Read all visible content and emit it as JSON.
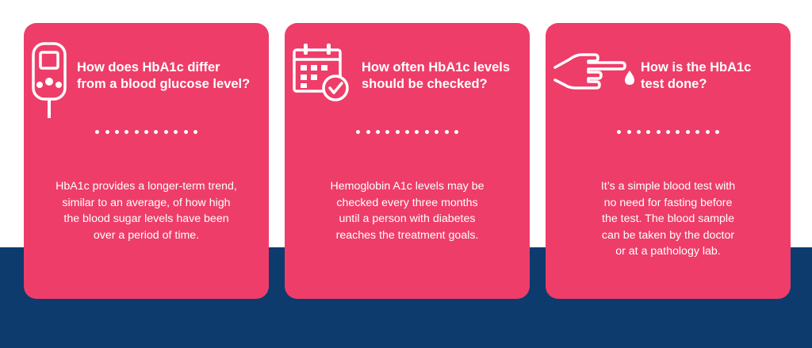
{
  "colors": {
    "card_background": "#ee3d69",
    "bottom_band": "#0d3b6e",
    "top_background": "#ffffff",
    "text": "#ffffff"
  },
  "cards": [
    {
      "icon": "glucose-meter-icon",
      "title_lines": [
        "How does HbA1c differ",
        "from a blood glucose level?"
      ],
      "body_lines": [
        "HbA1c provides a longer-term trend,",
        "similar to an average, of how high",
        "the blood sugar levels have been",
        "over a period of time."
      ]
    },
    {
      "icon": "calendar-check-icon",
      "title_lines": [
        "How often HbA1c levels",
        "should be checked?"
      ],
      "body_lines": [
        "Hemoglobin A1c levels may be",
        "checked every three months",
        "until a person with diabetes",
        "reaches the treatment goals."
      ]
    },
    {
      "icon": "finger-blood-drop-icon",
      "title_lines": [
        "How is the HbA1c",
        "test done?"
      ],
      "body_lines": [
        "It’s a simple blood test with",
        "no need for fasting before",
        "the test. The blood sample",
        "can be taken by the doctor",
        "or at a pathology lab."
      ]
    }
  ]
}
